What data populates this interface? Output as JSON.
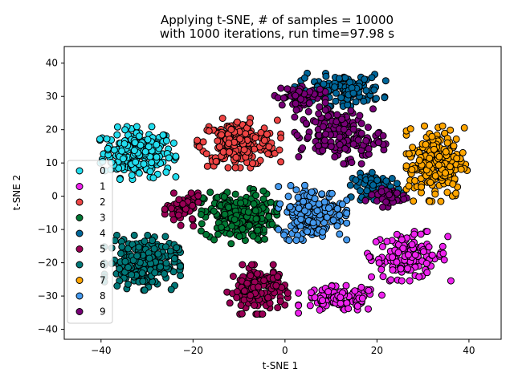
{
  "chart_data": {
    "type": "scatter",
    "title_line1": "Applying t-SNE, # of samples = 10000",
    "title_line2": "with 1000 iterations, run time=97.98 s",
    "xlabel": "t-SNE 1",
    "ylabel": "t-SNE 2",
    "xlim": [
      -48,
      47
    ],
    "ylim": [
      -43,
      45
    ],
    "xticks": [
      -40,
      -20,
      0,
      20,
      40
    ],
    "yticks": [
      -40,
      -30,
      -20,
      -10,
      0,
      10,
      20,
      30,
      40
    ],
    "grid": false,
    "legend_position": "left",
    "marker_edge_color": "#000000",
    "series": [
      {
        "name": "0",
        "color": "#22ddee",
        "clusters": [
          {
            "cx": -32,
            "cy": 13,
            "sx": 5.0,
            "sy": 4.8,
            "n": 230
          }
        ]
      },
      {
        "name": "1",
        "color": "#ee22ee",
        "clusters": [
          {
            "cx": 27,
            "cy": -18,
            "sx": 5.5,
            "sy": 4.5,
            "n": 130
          },
          {
            "cx": 12,
            "cy": -31,
            "sx": 5.5,
            "sy": 2.5,
            "n": 110
          }
        ]
      },
      {
        "name": "2",
        "color": "#ee4444",
        "clusters": [
          {
            "cx": -10,
            "cy": 16,
            "sx": 5.5,
            "sy": 4.5,
            "n": 220
          }
        ]
      },
      {
        "name": "3",
        "color": "#007733",
        "clusters": [
          {
            "cx": -10,
            "cy": -6,
            "sx": 5.0,
            "sy": 5.0,
            "n": 220
          }
        ]
      },
      {
        "name": "4",
        "color": "#006699",
        "clusters": [
          {
            "cx": 12,
            "cy": 32,
            "sx": 6.0,
            "sy": 3.0,
            "n": 130
          },
          {
            "cx": 20,
            "cy": 3,
            "sx": 3.5,
            "sy": 2.5,
            "n": 70
          }
        ]
      },
      {
        "name": "5",
        "color": "#990055",
        "clusters": [
          {
            "cx": -6,
            "cy": -28,
            "sx": 4.0,
            "sy": 4.5,
            "n": 150
          },
          {
            "cx": -22,
            "cy": -4,
            "sx": 2.5,
            "sy": 3.0,
            "n": 60
          }
        ]
      },
      {
        "name": "6",
        "color": "#007777",
        "clusters": [
          {
            "cx": -31,
            "cy": -20,
            "sx": 5.0,
            "sy": 5.0,
            "n": 220
          }
        ]
      },
      {
        "name": "7",
        "color": "#ffa500",
        "clusters": [
          {
            "cx": 33,
            "cy": 10,
            "sx": 4.0,
            "sy": 7.0,
            "n": 230
          }
        ]
      },
      {
        "name": "8",
        "color": "#4499ee",
        "clusters": [
          {
            "cx": 6,
            "cy": -5,
            "sx": 4.5,
            "sy": 5.0,
            "n": 210
          }
        ]
      },
      {
        "name": "9",
        "color": "#770077",
        "clusters": [
          {
            "cx": 12,
            "cy": 18,
            "sx": 6.0,
            "sy": 5.0,
            "n": 160
          },
          {
            "cx": 3,
            "cy": 30,
            "sx": 3.5,
            "sy": 2.5,
            "n": 60
          },
          {
            "cx": 22,
            "cy": 0,
            "sx": 3.0,
            "sy": 2.0,
            "n": 40
          }
        ]
      }
    ]
  }
}
